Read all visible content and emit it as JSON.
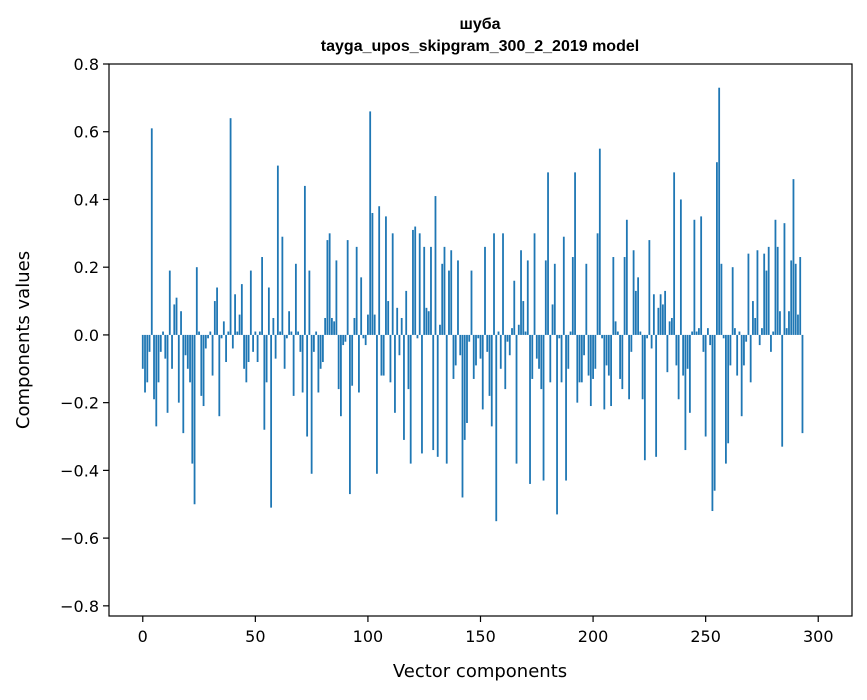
{
  "chart_data": {
    "type": "bar",
    "title_line1": "шуба",
    "title_line2": "tayga_upos_skipgram_300_2_2019 model",
    "xlabel": "Vector components",
    "ylabel": "Components values",
    "xlim": [
      -15,
      315
    ],
    "ylim": [
      -0.83,
      0.8
    ],
    "x_ticks": [
      0,
      50,
      100,
      150,
      200,
      250,
      300
    ],
    "x_tick_labels": [
      "0",
      "50",
      "100",
      "150",
      "200",
      "250",
      "300"
    ],
    "y_ticks": [
      0.8,
      0.6,
      0.4,
      0.2,
      0.0,
      -0.2,
      -0.4,
      -0.6,
      -0.8
    ],
    "y_tick_labels": [
      "0.8",
      "0.6",
      "0.4",
      "0.2",
      "0.0",
      "−0.2",
      "−0.4",
      "−0.6",
      "−0.8"
    ],
    "bar_color": "#1f77b4",
    "values": [
      -0.1,
      -0.17,
      -0.14,
      -0.05,
      0.61,
      -0.19,
      -0.27,
      -0.14,
      -0.05,
      0.01,
      -0.07,
      -0.23,
      0.19,
      -0.1,
      0.09,
      0.11,
      -0.2,
      0.07,
      -0.29,
      -0.06,
      -0.1,
      -0.14,
      -0.38,
      -0.5,
      0.2,
      0.01,
      -0.18,
      -0.21,
      -0.04,
      -0.01,
      0.01,
      -0.12,
      0.1,
      0.14,
      -0.24,
      -0.01,
      0.04,
      -0.08,
      0.01,
      0.64,
      -0.04,
      0.12,
      0.01,
      0.06,
      0.15,
      -0.1,
      -0.14,
      -0.08,
      0.19,
      -0.05,
      0.01,
      -0.08,
      0.01,
      0.23,
      -0.28,
      -0.14,
      0.14,
      -0.51,
      0.05,
      -0.07,
      0.5,
      0.01,
      0.29,
      -0.1,
      -0.01,
      0.07,
      0.01,
      -0.18,
      0.21,
      0.01,
      -0.05,
      -0.17,
      0.44,
      -0.3,
      0.19,
      -0.41,
      -0.05,
      0.01,
      -0.17,
      -0.1,
      -0.08,
      0.05,
      0.28,
      0.3,
      0.05,
      0.04,
      0.22,
      -0.16,
      -0.24,
      -0.03,
      -0.02,
      0.28,
      -0.47,
      -0.15,
      0.05,
      0.26,
      -0.17,
      0.17,
      -0.01,
      -0.03,
      0.06,
      0.66,
      0.36,
      0.06,
      -0.41,
      0.38,
      -0.12,
      -0.12,
      0.35,
      0.1,
      -0.14,
      0.3,
      -0.23,
      0.08,
      -0.06,
      0.05,
      -0.31,
      0.13,
      -0.16,
      -0.38,
      0.31,
      0.32,
      -0.01,
      0.3,
      -0.35,
      0.26,
      0.08,
      0.07,
      0.26,
      -0.34,
      0.41,
      -0.36,
      0.03,
      0.21,
      0.26,
      -0.38,
      0.19,
      0.25,
      -0.13,
      -0.09,
      0.22,
      -0.06,
      -0.48,
      -0.31,
      -0.26,
      -0.02,
      0.19,
      -0.13,
      -0.09,
      -0.01,
      -0.07,
      -0.22,
      0.26,
      -0.05,
      -0.18,
      -0.27,
      0.3,
      -0.55,
      0.01,
      -0.1,
      0.3,
      -0.16,
      -0.02,
      -0.06,
      0.02,
      0.16,
      -0.38,
      0.03,
      0.25,
      0.1,
      0.01,
      0.22,
      -0.44,
      -0.13,
      0.3,
      -0.07,
      -0.1,
      -0.16,
      -0.43,
      0.22,
      0.48,
      -0.14,
      0.09,
      0.21,
      -0.53,
      -0.01,
      -0.14,
      0.29,
      -0.43,
      -0.1,
      0.01,
      0.23,
      0.48,
      -0.2,
      -0.14,
      -0.14,
      -0.06,
      0.21,
      -0.12,
      -0.21,
      -0.13,
      -0.1,
      0.3,
      0.55,
      -0.01,
      -0.22,
      -0.09,
      -0.12,
      -0.21,
      0.23,
      0.04,
      0.01,
      -0.13,
      -0.16,
      0.23,
      0.34,
      -0.19,
      -0.05,
      0.25,
      0.13,
      0.17,
      0.01,
      -0.19,
      -0.37,
      -0.01,
      0.28,
      -0.04,
      0.12,
      -0.36,
      0.08,
      0.12,
      0.09,
      0.13,
      -0.11,
      0.04,
      0.05,
      0.48,
      -0.09,
      -0.19,
      0.4,
      -0.12,
      -0.34,
      -0.1,
      -0.23,
      0.01,
      0.34,
      0.01,
      0.02,
      0.35,
      -0.05,
      -0.3,
      0.02,
      -0.03,
      -0.52,
      -0.46,
      0.51,
      0.73,
      0.21,
      -0.01,
      -0.38,
      -0.32,
      -0.09,
      0.2,
      0.02,
      -0.12,
      0.01,
      -0.24,
      -0.09,
      -0.02,
      0.24,
      -0.14,
      0.1,
      0.05,
      0.25,
      -0.03,
      0.02,
      0.24,
      0.19,
      0.26,
      -0.05,
      0.01,
      0.34,
      0.26,
      0.07,
      -0.33,
      0.33,
      0.02,
      0.07,
      0.22,
      0.46,
      0.21,
      0.06,
      0.23,
      -0.29
    ]
  }
}
